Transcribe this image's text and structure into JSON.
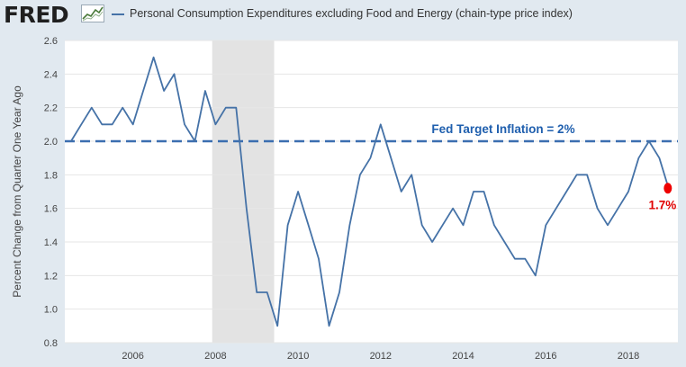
{
  "header": {
    "logo": "FRED",
    "logo_icon": "line-chart-icon"
  },
  "colors": {
    "background": "#e1e9f0",
    "plot_background": "#ffffff",
    "series": "#4572a7",
    "target_line": "#3b6eb0",
    "recession": "#e3e3e3",
    "highlight": "#ee0000"
  },
  "chart_data": {
    "type": "line",
    "title": "",
    "xlabel": "",
    "ylabel": "Percent Change from Quarter One Year Ago",
    "xlim": [
      2004.35,
      2019.2
    ],
    "ylim": [
      0.8,
      2.6
    ],
    "xticks": [
      2006,
      2008,
      2010,
      2012,
      2014,
      2016,
      2018
    ],
    "yticks": [
      0.8,
      1.0,
      1.2,
      1.4,
      1.6,
      1.8,
      2.0,
      2.2,
      2.4,
      2.6
    ],
    "grid": "horizontal",
    "legend": "top",
    "recession_shading": [
      2007.92,
      2009.42
    ],
    "series": [
      {
        "name": "Personal Consumption Expenditures excluding Food and Energy (chain-type price index)",
        "x": [
          2004.5,
          2004.75,
          2005.0,
          2005.25,
          2005.5,
          2005.75,
          2006.0,
          2006.25,
          2006.5,
          2006.75,
          2007.0,
          2007.25,
          2007.5,
          2007.75,
          2008.0,
          2008.25,
          2008.5,
          2008.75,
          2009.0,
          2009.25,
          2009.5,
          2009.75,
          2010.0,
          2010.25,
          2010.5,
          2010.75,
          2011.0,
          2011.25,
          2011.5,
          2011.75,
          2012.0,
          2012.25,
          2012.5,
          2012.75,
          2013.0,
          2013.25,
          2013.5,
          2013.75,
          2014.0,
          2014.25,
          2014.5,
          2014.75,
          2015.0,
          2015.25,
          2015.5,
          2015.75,
          2016.0,
          2016.25,
          2016.5,
          2016.75,
          2017.0,
          2017.25,
          2017.5,
          2017.75,
          2018.0,
          2018.25,
          2018.5,
          2018.75,
          2019.0
        ],
        "values": [
          2.0,
          2.1,
          2.2,
          2.1,
          2.1,
          2.2,
          2.1,
          2.3,
          2.5,
          2.3,
          2.4,
          2.1,
          2.0,
          2.3,
          2.1,
          2.2,
          2.2,
          1.6,
          1.1,
          1.1,
          0.9,
          1.5,
          1.7,
          1.5,
          1.3,
          0.9,
          1.1,
          1.5,
          1.8,
          1.9,
          2.1,
          1.9,
          1.7,
          1.8,
          1.5,
          1.4,
          1.5,
          1.6,
          1.5,
          1.7,
          1.7,
          1.5,
          1.4,
          1.3,
          1.3,
          1.2,
          1.5,
          1.6,
          1.7,
          1.8,
          1.8,
          1.6,
          1.5,
          1.6,
          1.7,
          1.9,
          2.0,
          1.9,
          1.7
        ]
      }
    ],
    "annotations": [
      {
        "text": "Fed Target Inflation = 2%",
        "y": 2.0,
        "style": "dashed-line"
      },
      {
        "text": "1.7%",
        "x": 2019.0,
        "y": 1.72,
        "style": "red-dot"
      }
    ]
  }
}
